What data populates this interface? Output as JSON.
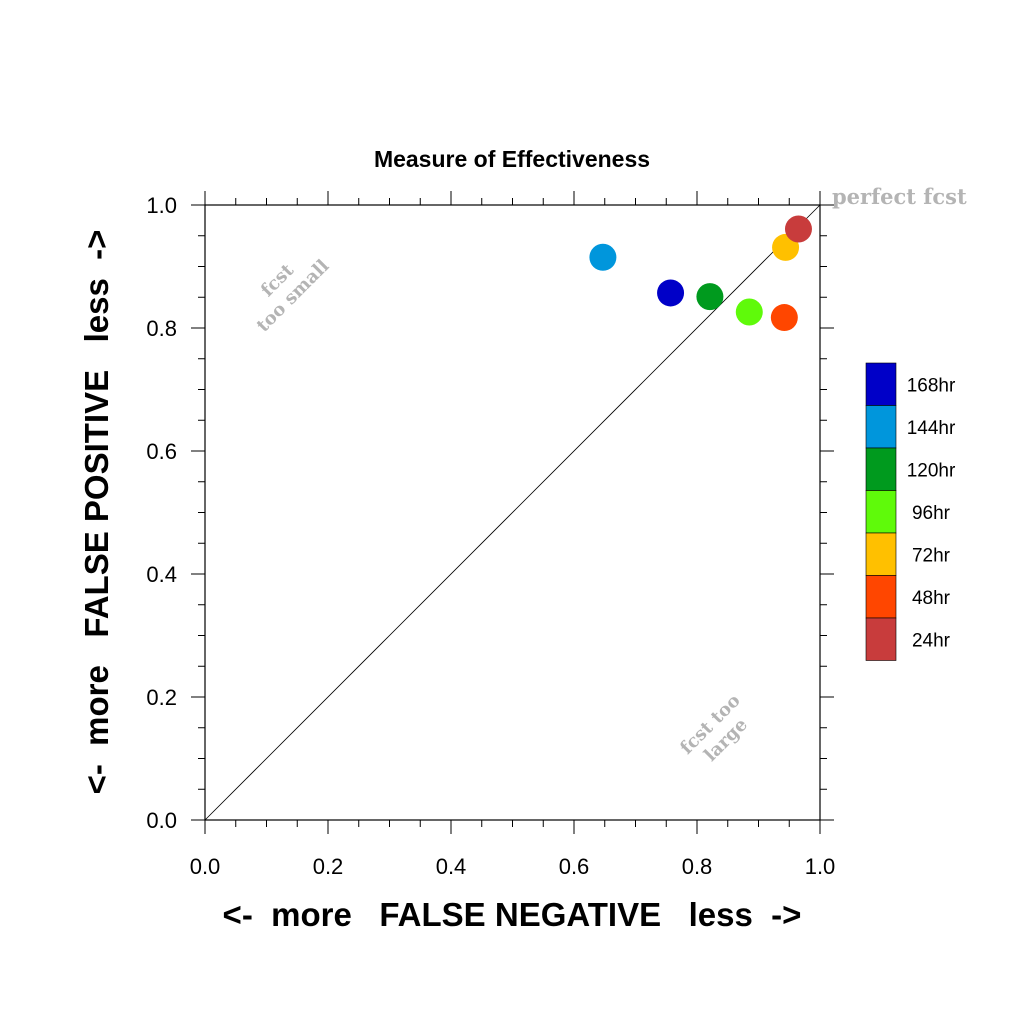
{
  "chart_data": {
    "type": "scatter",
    "title": "Measure of Effectiveness",
    "xlabel": "<-  more   FALSE NEGATIVE   less  ->",
    "ylabel": "<-  more   FALSE POSITIVE   less  ->",
    "xlim": [
      0.0,
      1.0
    ],
    "ylim": [
      0.0,
      1.0
    ],
    "xticks": [
      "0.0",
      "0.2",
      "0.4",
      "0.6",
      "0.8",
      "1.0"
    ],
    "yticks": [
      "0.0",
      "0.2",
      "0.4",
      "0.6",
      "0.8",
      "1.0"
    ],
    "tick_values": [
      0.0,
      0.2,
      0.4,
      0.6,
      0.8,
      1.0
    ],
    "grid": false,
    "diagonal_line": true,
    "legend_position": "right",
    "annotations": {
      "top_right": "perfect fcst",
      "upper_left_line1": "fcst",
      "upper_left_line2": "too small",
      "lower_right_line1": "fcst too",
      "lower_right_line2": "large"
    },
    "series": [
      {
        "name": "168hr",
        "color": "#0000c8",
        "x": 0.757,
        "y": 0.857
      },
      {
        "name": "144hr",
        "color": "#0096dc",
        "x": 0.647,
        "y": 0.915
      },
      {
        "name": "120hr",
        "color": "#009a1e",
        "x": 0.821,
        "y": 0.851
      },
      {
        "name": "96hr",
        "color": "#5ffa0a",
        "x": 0.885,
        "y": 0.826
      },
      {
        "name": "72hr",
        "color": "#ffc000",
        "x": 0.944,
        "y": 0.931
      },
      {
        "name": "48hr",
        "color": "#ff4600",
        "x": 0.942,
        "y": 0.817
      },
      {
        "name": "24hr",
        "color": "#c83c3c",
        "x": 0.965,
        "y": 0.961
      }
    ]
  }
}
